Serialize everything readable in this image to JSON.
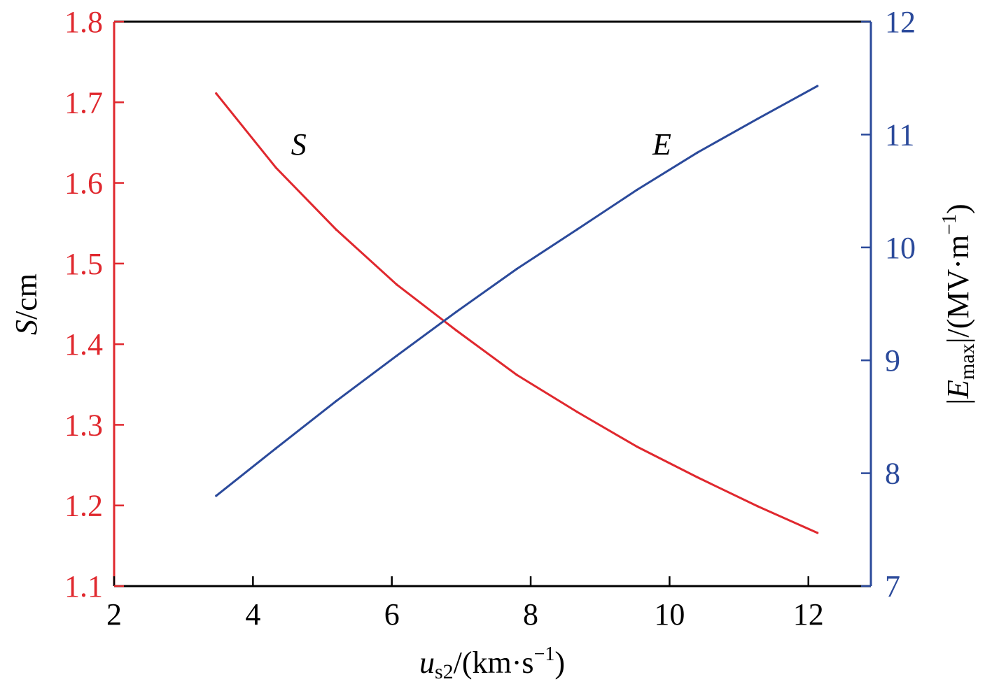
{
  "chart_data": {
    "type": "line",
    "title": "",
    "x_axis": {
      "label_var": "u",
      "label_sub": "s2",
      "label_unit_open": "/(km·s",
      "label_unit_exp": "−1",
      "label_unit_close": ")",
      "range": [
        2,
        12.9
      ],
      "ticks": [
        2,
        4,
        6,
        8,
        10,
        12
      ],
      "tick_labels": [
        "2",
        "4",
        "6",
        "8",
        "10",
        "12"
      ]
    },
    "y_left": {
      "label_var": "S",
      "label_unit": "/cm",
      "range": [
        1.1,
        1.8
      ],
      "ticks": [
        1.1,
        1.2,
        1.3,
        1.4,
        1.5,
        1.6,
        1.7,
        1.8
      ],
      "tick_labels": [
        "1.1",
        "1.2",
        "1.3",
        "1.4",
        "1.5",
        "1.6",
        "1.7",
        "1.8"
      ],
      "color": "#e0282e"
    },
    "y_right": {
      "label_open": "|",
      "label_var": "E",
      "label_sub": "max",
      "label_close": "|/(MV·m",
      "label_exp": "−1",
      "label_end": ")",
      "range": [
        7,
        12
      ],
      "ticks": [
        7,
        8,
        9,
        10,
        11,
        12
      ],
      "tick_labels": [
        "7",
        "8",
        "9",
        "10",
        "11",
        "12"
      ],
      "color": "#2b4a9b"
    },
    "grid": false,
    "legend": "none",
    "series": [
      {
        "name": "S",
        "axis": "left",
        "color": "#e0282e",
        "x": [
          3.47,
          4.33,
          5.2,
          6.07,
          6.93,
          7.8,
          8.67,
          9.53,
          10.4,
          11.27,
          12.13
        ],
        "y": [
          1.711,
          1.619,
          1.542,
          1.474,
          1.417,
          1.362,
          1.316,
          1.273,
          1.235,
          1.199,
          1.166
        ]
      },
      {
        "name": "E",
        "axis": "right",
        "color": "#2b4a9b",
        "x": [
          3.47,
          4.33,
          5.2,
          6.07,
          6.93,
          7.8,
          8.67,
          9.53,
          10.4,
          11.27,
          12.13
        ],
        "y": [
          7.8,
          8.22,
          8.64,
          9.04,
          9.43,
          9.81,
          10.16,
          10.51,
          10.84,
          11.14,
          11.43
        ]
      }
    ],
    "annotations": [
      {
        "text": "S",
        "x": 4.66,
        "y_left": 1.635
      },
      {
        "text": "E",
        "x": 9.89,
        "y_left": 1.635
      }
    ]
  }
}
